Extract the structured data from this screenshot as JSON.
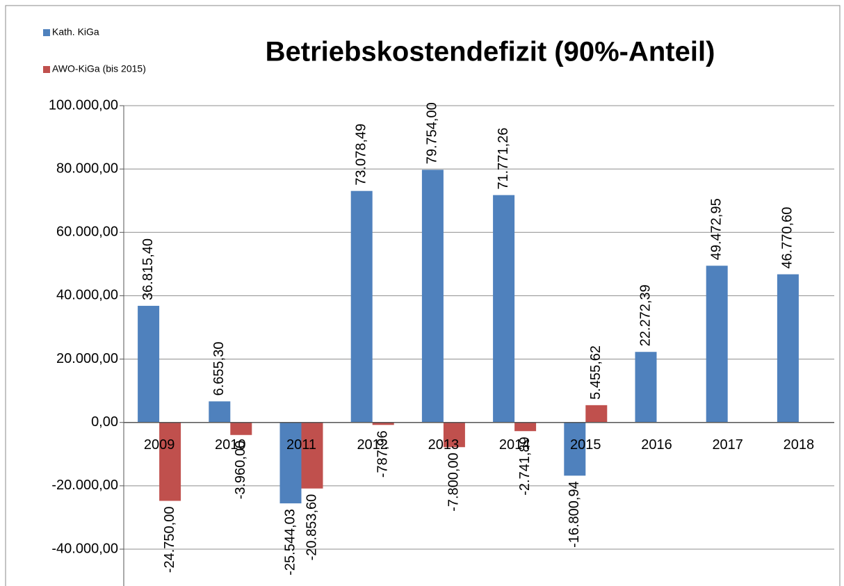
{
  "chart_data": {
    "type": "bar",
    "title": "Betriebskostendefizit (90%-Anteil)",
    "categories": [
      "2009",
      "2010",
      "2011",
      "2012",
      "2013",
      "2014",
      "2015",
      "2016",
      "2017",
      "2018"
    ],
    "series": [
      {
        "name": "Kath. KiGa",
        "color": "#4f81bd",
        "values": [
          36815.4,
          6655.3,
          -25544.03,
          73078.49,
          79754.0,
          71771.26,
          -16800.94,
          22272.39,
          49472.95,
          46770.6
        ],
        "value_labels": [
          "36.815,40",
          "6.655,30",
          "-25.544,03",
          "73.078,49",
          "79.754,00",
          "71.771,26",
          "-16.800,94",
          "22.272,39",
          "49.472,95",
          "46.770,60"
        ]
      },
      {
        "name": "AWO-KiGa (bis 2015)",
        "color": "#c0504d",
        "values": [
          -24750.0,
          -3960.0,
          -20853.6,
          -787.96,
          -7800.0,
          -2741.89,
          5455.62,
          null,
          null,
          null
        ],
        "value_labels": [
          "-24.750,00",
          "-3.960,00",
          "-20.853,60",
          "-787,96",
          "-7.800,00",
          "-2.741,89",
          "5.455,62",
          null,
          null,
          null
        ]
      }
    ],
    "ylim": [
      -40000,
      100000
    ],
    "yticks": [
      {
        "value": -40000,
        "label": "-40.000,00"
      },
      {
        "value": -20000,
        "label": "-20.000,00"
      },
      {
        "value": 0,
        "label": "0,00"
      },
      {
        "value": 20000,
        "label": "20.000,00"
      },
      {
        "value": 40000,
        "label": "40.000,00"
      },
      {
        "value": 60000,
        "label": "60.000,00"
      },
      {
        "value": 80000,
        "label": "80.000,00"
      },
      {
        "value": 100000,
        "label": "100.000,00"
      }
    ],
    "grid": true,
    "legend": "top-left"
  }
}
